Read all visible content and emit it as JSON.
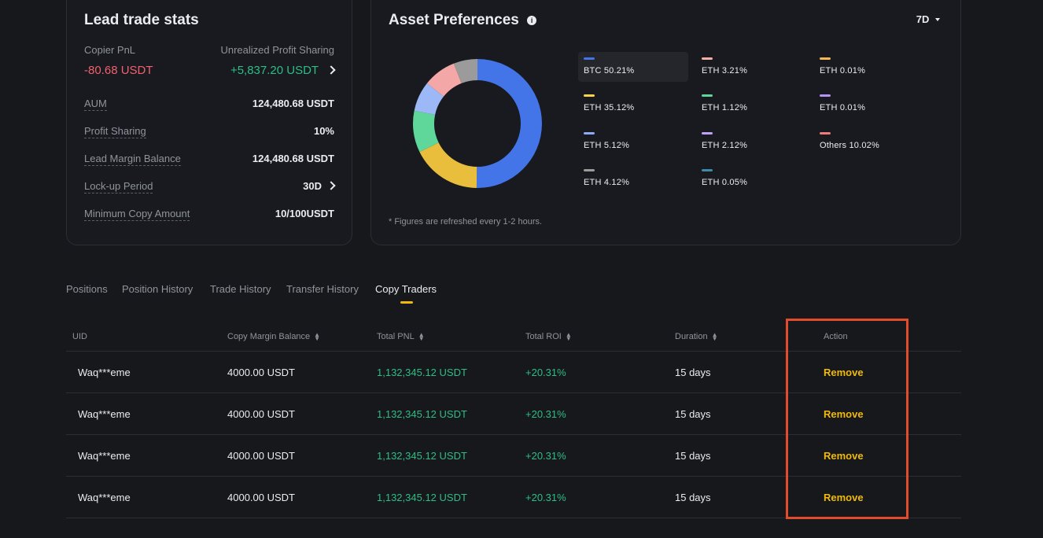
{
  "stats": {
    "title": "Lead trade stats",
    "copier_pnl_label": "Copier PnL",
    "copier_pnl_value": "-80.68 USDT",
    "unrealized_label": "Unrealized Profit Sharing",
    "unrealized_value": "+5,837.20 USDT",
    "rows": [
      {
        "label": "AUM",
        "value": "124,480.68 USDT"
      },
      {
        "label": "Profit Sharing",
        "value": "10%"
      },
      {
        "label": "Lead Margin Balance",
        "value": "124,480.68 USDT"
      },
      {
        "label": "Lock-up Period",
        "value": "30D"
      },
      {
        "label": "Minimum Copy Amount",
        "value": "10/100USDT"
      }
    ]
  },
  "assets": {
    "title": "Asset Preferences",
    "period": "7D",
    "note": "* Figures are refreshed every 1-2 hours.",
    "legend": [
      {
        "label": "BTC 50.21%",
        "color": "#4475e8"
      },
      {
        "label": "ETH 3.21%",
        "color": "#f3b0a6"
      },
      {
        "label": "ETH 0.01%",
        "color": "#f2b856"
      },
      {
        "label": "ETH 35.12%",
        "color": "#f5d34b"
      },
      {
        "label": "ETH 1.12%",
        "color": "#5fd79b"
      },
      {
        "label": "ETH 0.01%",
        "color": "#b593f2"
      },
      {
        "label": "ETH 5.12%",
        "color": "#8eaaf6"
      },
      {
        "label": "ETH 2.12%",
        "color": "#c2a1f5"
      },
      {
        "label": "Others 10.02%",
        "color": "#f07a7a"
      },
      {
        "label": "ETH 4.12%",
        "color": "#9b9b9b"
      },
      {
        "label": "ETH 0.05%",
        "color": "#3f8aa6"
      }
    ],
    "donut": [
      {
        "label": "BTC",
        "value": 50.21,
        "color": "#4475e8"
      },
      {
        "label": "ETH",
        "value": 17.5,
        "color": "#e8be3c"
      },
      {
        "label": "ETH",
        "value": 10.5,
        "color": "#5fd79b"
      },
      {
        "label": "ETH",
        "value": 7.5,
        "color": "#9db8f7"
      },
      {
        "label": "ETH",
        "value": 8.29,
        "color": "#f3a7a7"
      },
      {
        "label": "ETH",
        "value": 6.0,
        "color": "#9b9b9b"
      }
    ]
  },
  "tabs": [
    "Positions",
    "Position History",
    "Trade History",
    "Transfer History",
    "Copy Traders"
  ],
  "table": {
    "headers": [
      "UID",
      "Copy Margin Balance",
      "Total PNL",
      "Total ROI",
      "Duration",
      "Action"
    ],
    "rows": [
      {
        "uid": "Waq***eme",
        "balance": "4000.00 USDT",
        "pnl": "1,132,345.12 USDT",
        "roi": "+20.31%",
        "duration": "15 days",
        "action": "Remove"
      },
      {
        "uid": "Waq***eme",
        "balance": "4000.00 USDT",
        "pnl": "1,132,345.12 USDT",
        "roi": "+20.31%",
        "duration": "15 days",
        "action": "Remove"
      },
      {
        "uid": "Waq***eme",
        "balance": "4000.00 USDT",
        "pnl": "1,132,345.12 USDT",
        "roi": "+20.31%",
        "duration": "15 days",
        "action": "Remove"
      },
      {
        "uid": "Waq***eme",
        "balance": "4000.00 USDT",
        "pnl": "1,132,345.12 USDT",
        "roi": "+20.31%",
        "duration": "15 days",
        "action": "Remove"
      }
    ]
  },
  "icons": {
    "info": "info-icon",
    "chevron_right": "chevron-right-icon",
    "caret_down": "caret-down-icon",
    "sort": "sort-icon"
  }
}
